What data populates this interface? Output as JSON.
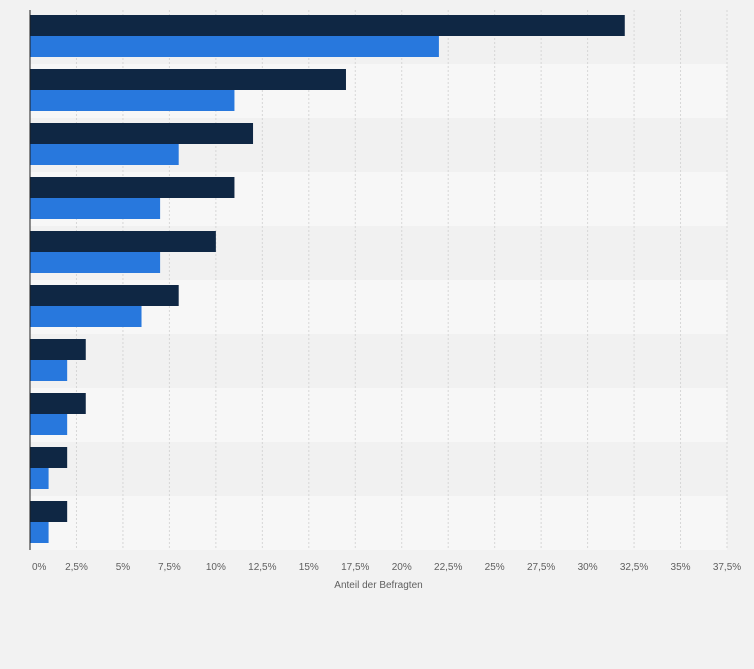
{
  "chart_data": {
    "type": "bar",
    "orientation": "horizontal",
    "title": "",
    "xlabel": "Anteil der Befragten",
    "ylabel": "",
    "xlim": [
      0,
      37.5
    ],
    "x_ticks": [
      "0%",
      "2,5%",
      "5%",
      "7,5%",
      "10%",
      "12,5%",
      "15%",
      "17,5%",
      "20%",
      "22,5%",
      "25%",
      "27,5%",
      "30%",
      "32,5%",
      "35%",
      "37,5%"
    ],
    "grid": true,
    "legend": "none",
    "categories": [
      "",
      "",
      "",
      "",
      "",
      "",
      "",
      "",
      "",
      ""
    ],
    "series": [
      {
        "color": "#0f2744",
        "values": [
          32,
          17,
          12,
          11,
          10,
          8,
          3,
          3,
          2,
          2
        ]
      },
      {
        "color": "#2878dd",
        "values": [
          22,
          11,
          8,
          7,
          7,
          6,
          2,
          2,
          1,
          1
        ]
      }
    ],
    "colors": {
      "band_light": "#f7f7f7",
      "band_dark": "#f1f1f1",
      "grid": "#d6d6d6",
      "axis": "#1e1e1e"
    }
  }
}
